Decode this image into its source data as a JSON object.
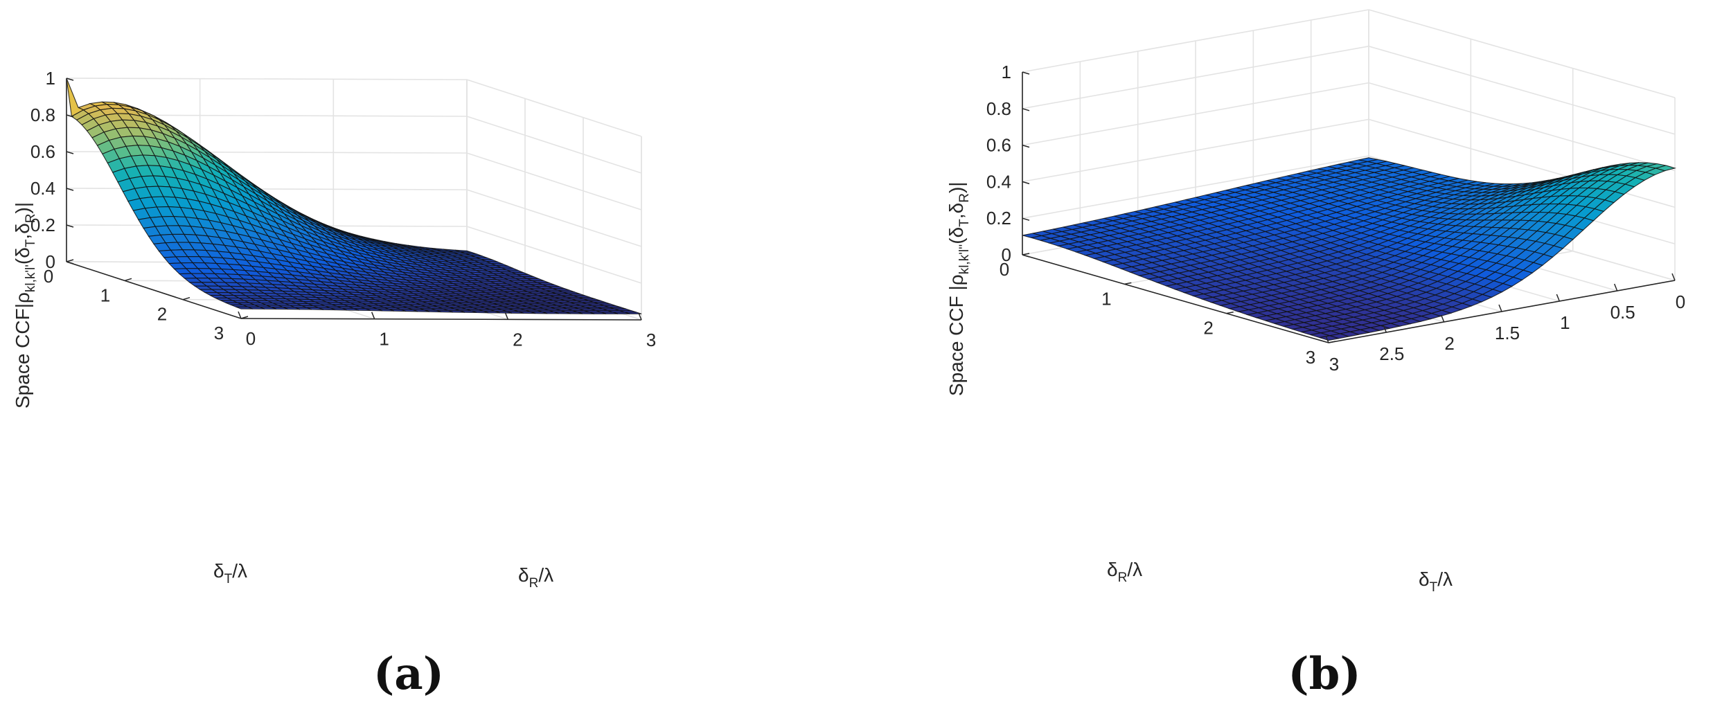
{
  "chart_data": [
    {
      "type": "surface",
      "panel_label": "(a)",
      "zlabel": "Space CCF|ρ_{kl,k'l'}(δ_T,δ_R)|",
      "xlabel": "δ_T/λ",
      "ylabel": "δ_R/λ",
      "zlim": [
        0,
        1
      ],
      "x_range": [
        0,
        3
      ],
      "y_range": [
        0,
        3
      ],
      "x_ticks": [
        "0",
        "1",
        "2",
        "3"
      ],
      "y_ticks": [
        "0",
        "1",
        "2",
        "3"
      ],
      "z_ticks": [
        "0",
        "0.2",
        "0.4",
        "0.6",
        "0.8",
        "1"
      ],
      "grid": true,
      "colormap": "parula",
      "view": "x-axis left-front, y-axis right-front",
      "shape": "peak of 1 at δT=0, δR=0; steep decay along δT; shallow ridge (~0.42) along δT=0 decreasing in δR; ~0.05–0.1 over most of the domain",
      "samples": {
        "at_origin": 1.0,
        "at_dT_3_dR_0": 0.05,
        "at_dT_0_dR_1": 0.43,
        "at_dT_0_dR_3": 0.02,
        "at_dT_3_dR_3": 0.02
      }
    },
    {
      "type": "surface",
      "panel_label": "(b)",
      "zlabel": "Space CCF |ρ_{kl,k'l''}(δ_T,δ_R)|",
      "xlabel": "δ_T/λ",
      "ylabel": "δ_R/λ",
      "zlim": [
        0,
        1
      ],
      "x_range": [
        0,
        3
      ],
      "y_range": [
        0,
        3
      ],
      "x_ticks": [
        "0",
        "0.5",
        "1",
        "1.5",
        "2",
        "2.5",
        "3"
      ],
      "y_ticks": [
        "0",
        "1",
        "2",
        "3"
      ],
      "z_ticks": [
        "0",
        "0.2",
        "0.4",
        "0.6",
        "0.8",
        "1"
      ],
      "grid": true,
      "colormap": "parula",
      "view": "y-axis left-front, x-axis right-front (reversed)",
      "shape": "peak ~0.6 at δT=0, δR=3; ~0.1 along δR=0; minimum ~0.0 near δT=3, δR=3",
      "samples": {
        "at_dT_0_dR_0": 0.1,
        "at_dT_0_dR_3": 0.62,
        "at_dT_3_dR_0": 0.11,
        "at_dT_3_dR_3": 0.0
      }
    }
  ]
}
